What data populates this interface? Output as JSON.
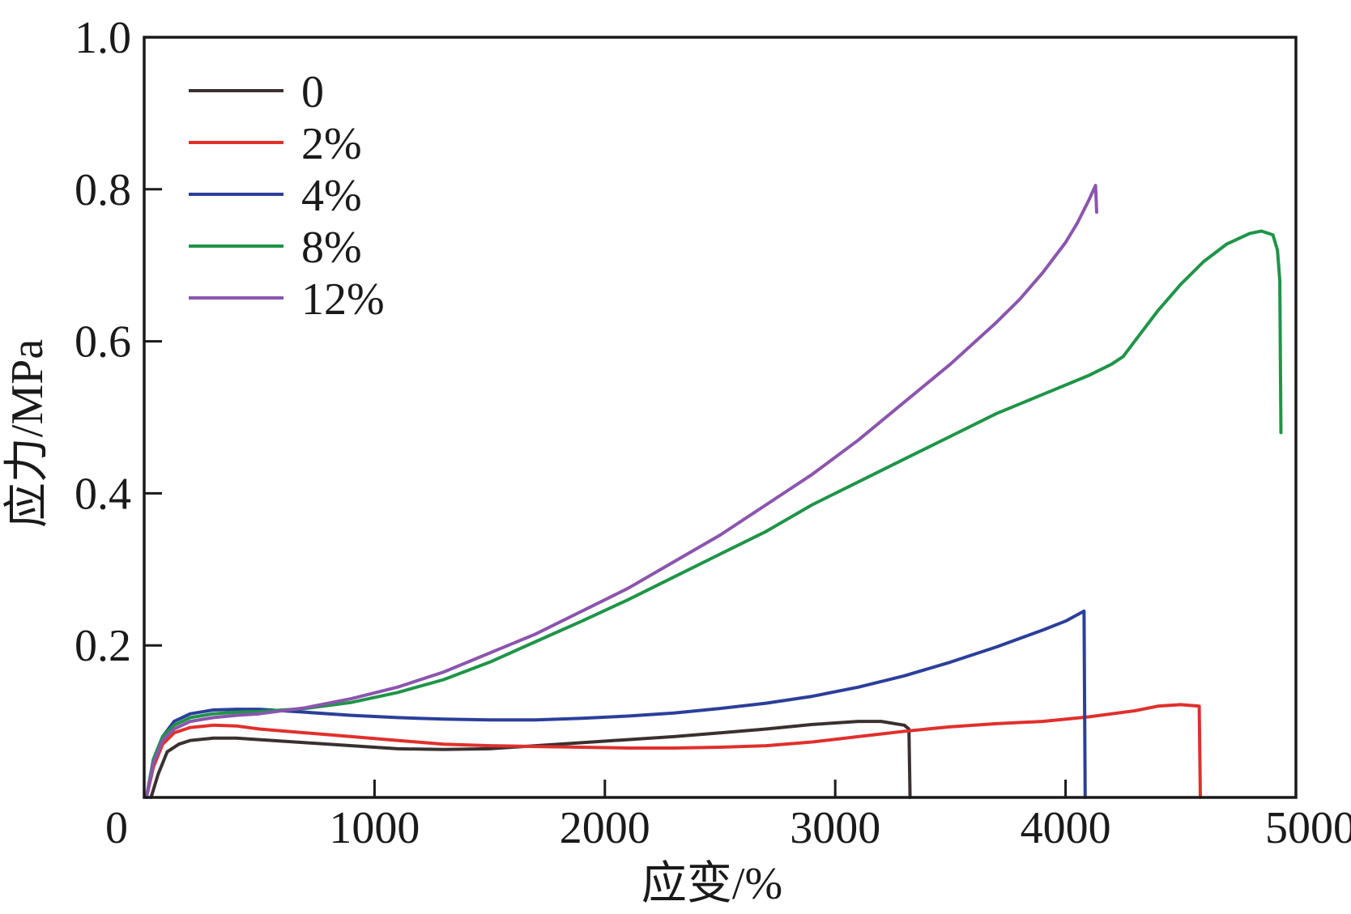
{
  "chart_data": {
    "type": "line",
    "title": "",
    "xlabel": "应变/%",
    "ylabel": "应力/MPa",
    "xlim": [
      0,
      5000
    ],
    "ylim": [
      0,
      1.0
    ],
    "x_ticks": [
      0,
      1000,
      2000,
      3000,
      4000,
      5000
    ],
    "x_tick_labels": [
      "0",
      "1000",
      "2000",
      "3000",
      "4000",
      "5000"
    ],
    "y_ticks": [
      0.2,
      0.4,
      0.6,
      0.8,
      1.0
    ],
    "y_tick_labels": [
      "0.2",
      "0.4",
      "0.6",
      "0.8",
      "1.0"
    ],
    "grid": false,
    "legend_position": "top-left",
    "series": [
      {
        "name": "0",
        "color": "#3a3030",
        "x": [
          30,
          60,
          100,
          150,
          200,
          300,
          400,
          500,
          700,
          900,
          1100,
          1300,
          1500,
          1700,
          1900,
          2100,
          2300,
          2500,
          2700,
          2900,
          3100,
          3200,
          3300,
          3320,
          3325
        ],
        "y": [
          0.0,
          0.03,
          0.06,
          0.07,
          0.075,
          0.078,
          0.078,
          0.076,
          0.072,
          0.068,
          0.064,
          0.063,
          0.064,
          0.068,
          0.072,
          0.076,
          0.08,
          0.085,
          0.09,
          0.096,
          0.1,
          0.1,
          0.095,
          0.09,
          0.0
        ]
      },
      {
        "name": "2%",
        "color": "#e0302c",
        "x": [
          10,
          40,
          80,
          130,
          200,
          300,
          400,
          500,
          700,
          900,
          1100,
          1300,
          1500,
          1700,
          1900,
          2100,
          2300,
          2500,
          2700,
          2900,
          3100,
          3300,
          3500,
          3700,
          3900,
          4100,
          4300,
          4400,
          4500,
          4580,
          4585
        ],
        "y": [
          0.0,
          0.04,
          0.07,
          0.085,
          0.092,
          0.095,
          0.094,
          0.09,
          0.085,
          0.08,
          0.075,
          0.07,
          0.068,
          0.067,
          0.066,
          0.065,
          0.065,
          0.066,
          0.068,
          0.073,
          0.08,
          0.087,
          0.093,
          0.097,
          0.1,
          0.106,
          0.114,
          0.12,
          0.122,
          0.12,
          0.0
        ]
      },
      {
        "name": "4%",
        "color": "#2b3f9a",
        "x": [
          10,
          40,
          80,
          130,
          200,
          300,
          400,
          500,
          700,
          900,
          1100,
          1300,
          1500,
          1700,
          1900,
          2100,
          2300,
          2500,
          2700,
          2900,
          3100,
          3300,
          3500,
          3700,
          3900,
          4000,
          4080,
          4085
        ],
        "y": [
          0.0,
          0.05,
          0.08,
          0.1,
          0.11,
          0.115,
          0.116,
          0.116,
          0.112,
          0.108,
          0.105,
          0.103,
          0.102,
          0.102,
          0.104,
          0.107,
          0.111,
          0.117,
          0.124,
          0.133,
          0.145,
          0.16,
          0.178,
          0.198,
          0.22,
          0.232,
          0.245,
          0.0
        ]
      },
      {
        "name": "8%",
        "color": "#1f9448",
        "x": [
          10,
          40,
          80,
          130,
          200,
          300,
          400,
          500,
          700,
          900,
          1100,
          1300,
          1500,
          1700,
          1900,
          2100,
          2300,
          2500,
          2700,
          2900,
          3100,
          3300,
          3500,
          3700,
          3900,
          4100,
          4200,
          4250,
          4300,
          4400,
          4500,
          4600,
          4700,
          4800,
          4850,
          4900,
          4920,
          4930,
          4935
        ],
        "y": [
          0.0,
          0.05,
          0.08,
          0.095,
          0.105,
          0.11,
          0.112,
          0.113,
          0.117,
          0.125,
          0.138,
          0.155,
          0.178,
          0.205,
          0.232,
          0.26,
          0.29,
          0.32,
          0.35,
          0.385,
          0.415,
          0.445,
          0.475,
          0.505,
          0.53,
          0.555,
          0.57,
          0.58,
          0.6,
          0.64,
          0.675,
          0.705,
          0.728,
          0.742,
          0.745,
          0.74,
          0.72,
          0.68,
          0.48
        ]
      },
      {
        "name": "12%",
        "color": "#8b55ae",
        "x": [
          10,
          40,
          80,
          130,
          200,
          300,
          400,
          500,
          700,
          900,
          1100,
          1300,
          1500,
          1700,
          1900,
          2100,
          2300,
          2500,
          2700,
          2900,
          3100,
          3300,
          3500,
          3700,
          3800,
          3900,
          4000,
          4050,
          4100,
          4130,
          4135
        ],
        "y": [
          0.0,
          0.045,
          0.075,
          0.09,
          0.1,
          0.105,
          0.108,
          0.11,
          0.118,
          0.13,
          0.145,
          0.165,
          0.19,
          0.215,
          0.245,
          0.275,
          0.31,
          0.345,
          0.385,
          0.425,
          0.47,
          0.52,
          0.57,
          0.625,
          0.655,
          0.69,
          0.73,
          0.755,
          0.785,
          0.805,
          0.77
        ]
      }
    ]
  }
}
